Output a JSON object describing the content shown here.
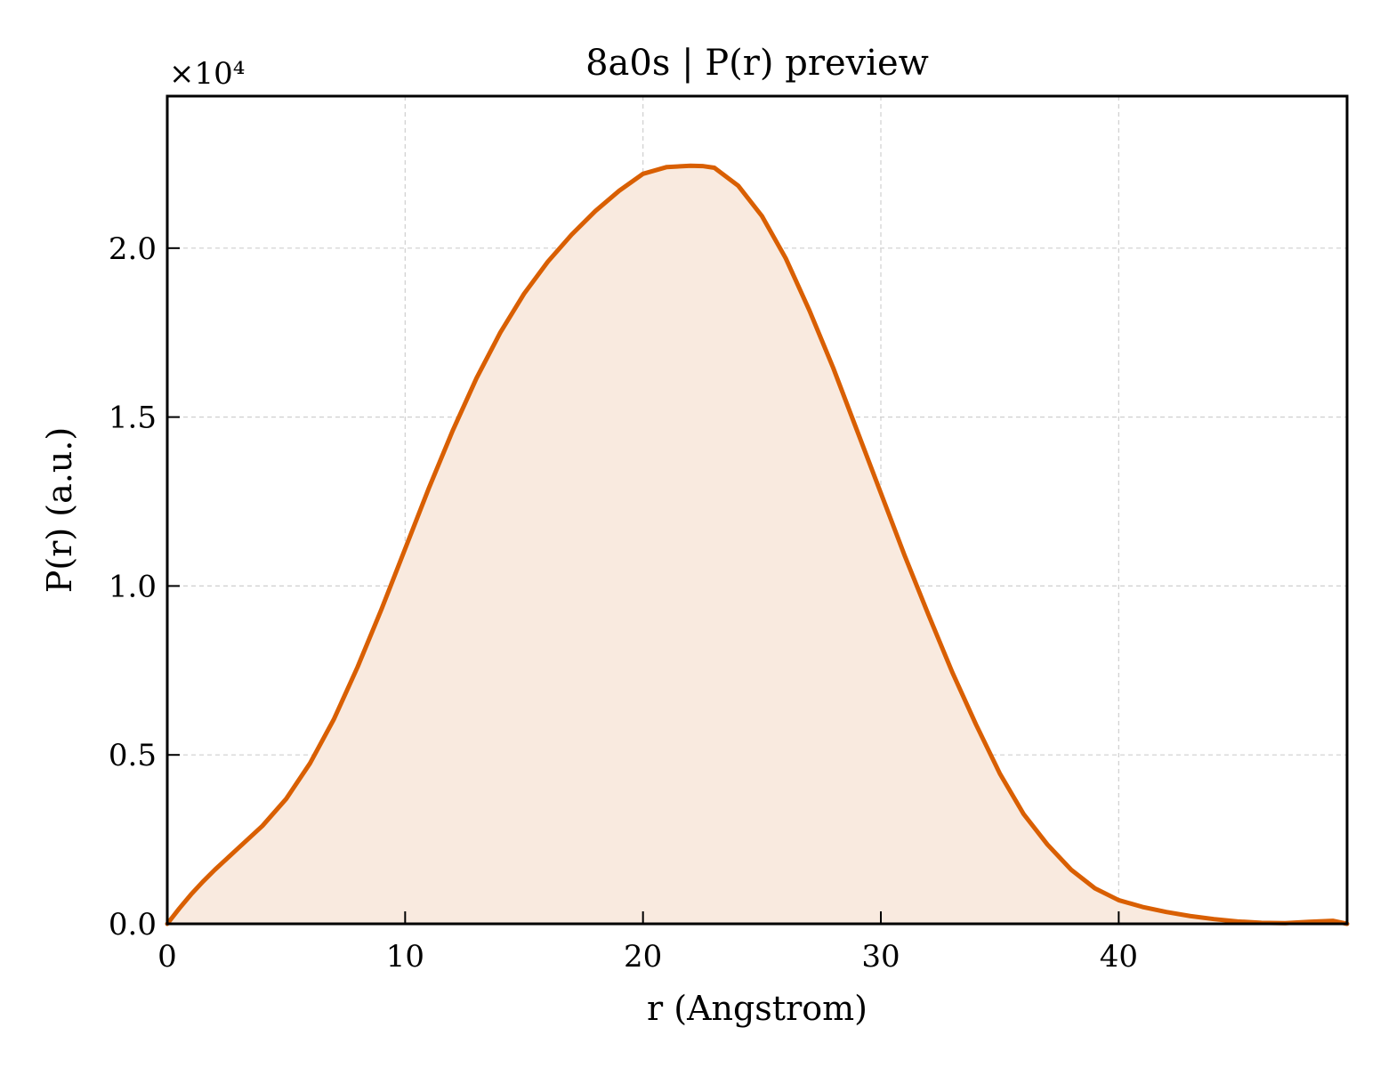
{
  "chart_data": {
    "type": "area",
    "title": "8a0s | P(r) preview",
    "xlabel": "r (Angstrom)",
    "ylabel": "P(r) (a.u.)",
    "y_multiplier_label": "×10⁴",
    "xlim": [
      0,
      49.6
    ],
    "ylim": [
      0,
      24500
    ],
    "x_ticks": [
      0,
      10,
      20,
      30,
      40
    ],
    "x_tick_labels": [
      "0",
      "10",
      "20",
      "30",
      "40"
    ],
    "y_ticks": [
      0,
      5000,
      10000,
      15000,
      20000
    ],
    "y_tick_labels": [
      "0.0",
      "0.5",
      "1.0",
      "1.5",
      "2.0"
    ],
    "grid": true,
    "tick_direction": "in",
    "series": [
      {
        "line_color": "#d95f02",
        "fill_color": "#f9eadf",
        "x": [
          0,
          0.5,
          1,
          1.5,
          2,
          3,
          4,
          5,
          6,
          7,
          8,
          9,
          10,
          11,
          12,
          13,
          14,
          15,
          16,
          17,
          18,
          19,
          20,
          21,
          22,
          22.5,
          23,
          24,
          25,
          26,
          27,
          28,
          29,
          30,
          31,
          32,
          33,
          34,
          35,
          36,
          37,
          38,
          39,
          40,
          41,
          42,
          43,
          44,
          45,
          46,
          47,
          48,
          49,
          49.6
        ],
        "y": [
          0,
          450,
          870,
          1250,
          1600,
          2250,
          2900,
          3700,
          4750,
          6050,
          7600,
          9300,
          11100,
          12900,
          14600,
          16150,
          17500,
          18650,
          19600,
          20400,
          21100,
          21700,
          22200,
          22400,
          22440,
          22430,
          22380,
          21850,
          20950,
          19700,
          18150,
          16450,
          14600,
          12750,
          10900,
          9150,
          7450,
          5900,
          4450,
          3250,
          2350,
          1600,
          1050,
          700,
          500,
          350,
          230,
          140,
          70,
          30,
          20,
          60,
          90,
          0
        ]
      }
    ]
  }
}
